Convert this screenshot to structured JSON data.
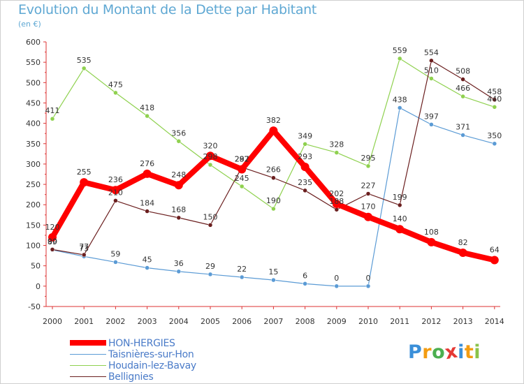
{
  "title": "Evolution du Montant de la Dette par Habitant",
  "unit_label": "(en €)",
  "chart_data": {
    "type": "line",
    "x": [
      2000,
      2001,
      2002,
      2003,
      2004,
      2005,
      2006,
      2007,
      2008,
      2009,
      2010,
      2011,
      2012,
      2013,
      2014
    ],
    "ylim": [
      -50,
      600
    ],
    "yticks": [
      -50,
      0,
      50,
      100,
      150,
      200,
      250,
      300,
      350,
      400,
      450,
      500,
      550,
      600
    ],
    "grid": false,
    "legend_position": "bottom-left",
    "series": [
      {
        "name": "HON-HERGIES",
        "color": "#ff0000",
        "values": [
          120,
          255,
          236,
          276,
          248,
          320,
          287,
          382,
          293,
          202,
          170,
          140,
          108,
          82,
          64
        ]
      },
      {
        "name": "Taisnières-sur-Hon",
        "color": "#5b9bd5",
        "values": [
          89,
          73,
          59,
          45,
          36,
          29,
          22,
          15,
          6,
          0,
          0,
          438,
          397,
          371,
          350
        ]
      },
      {
        "name": "Houdain-lez-Bavay",
        "color": "#8fd14f",
        "values": [
          411,
          535,
          475,
          418,
          356,
          298,
          245,
          190,
          349,
          328,
          295,
          559,
          510,
          466,
          440
        ]
      },
      {
        "name": "Bellignies",
        "color": "#6b1f1f",
        "values": [
          90,
          77,
          210,
          184,
          168,
          150,
          292,
          266,
          235,
          188,
          227,
          199,
          554,
          508,
          458
        ]
      }
    ]
  },
  "logo": {
    "letters": [
      "P",
      "r",
      "o",
      "x",
      "i",
      "t",
      "i"
    ],
    "colors": [
      "#3a8fd9",
      "#f39c12",
      "#4caf50",
      "#e53935",
      "#3a8fd9",
      "#f39c12",
      "#8bc34a"
    ]
  }
}
